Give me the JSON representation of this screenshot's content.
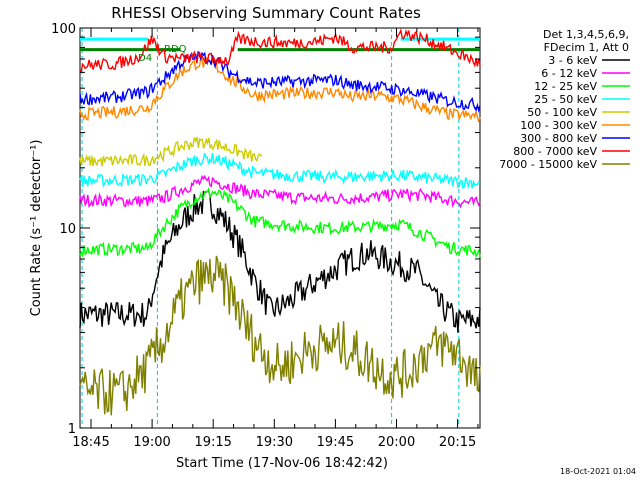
{
  "chart_data": {
    "type": "line",
    "title": "RHESSI Observing Summary Count Rates",
    "xlabel": "Start Time (17-Nov-06 18:42:42)",
    "ylabel": "Count Rate (s⁻¹ detector⁻¹)",
    "yscale": "log",
    "ylim": [
      1,
      100
    ],
    "xlim_minutes": [
      -2.7,
      95.5
    ],
    "x_tick_labels": [
      "18:45",
      "19:00",
      "19:15",
      "19:30",
      "19:45",
      "20:00",
      "20:15"
    ],
    "x_tick_minutes": [
      0,
      15,
      30,
      45,
      60,
      75,
      90
    ],
    "y_tick_labels": [
      "1",
      "10",
      "100"
    ],
    "y_tick_values": [
      1,
      10,
      100
    ],
    "legend_header": [
      "Det 1,3,4,5,6,9,",
      "FDecim 1, Att 0"
    ],
    "legend_placement": "right",
    "annotations": [
      {
        "label": "RDQ",
        "color": "#008000"
      },
      {
        "label": "D4",
        "color": "#008000"
      }
    ],
    "vertical_markers_minutes": [
      -2.2,
      16.3,
      73.8,
      90.3
    ],
    "flag_lines": [
      {
        "name": "cyan-flag",
        "color": "#00ffff",
        "level": 88,
        "segments": [
          [
            -2.7,
            14
          ],
          [
            76,
            95.5
          ]
        ]
      },
      {
        "name": "green-flag",
        "color": "#008000",
        "level": 78,
        "segments": [
          [
            -2.7,
            22
          ],
          [
            36,
            95.5
          ]
        ]
      }
    ],
    "series": [
      {
        "name": "3 - 6 keV",
        "color": "#000000",
        "x": [
          -2.7,
          14,
          18,
          22,
          26,
          29,
          32,
          36,
          40,
          44,
          48,
          52,
          56,
          60,
          64,
          68,
          72,
          76,
          80,
          85,
          90,
          95.5
        ],
        "y": [
          3.7,
          3.7,
          7.5,
          10.5,
          13,
          13.5,
          11.5,
          8.5,
          5.5,
          3.8,
          4.2,
          4.8,
          5.5,
          6.2,
          7.0,
          7.5,
          7.0,
          6.5,
          6.0,
          4.2,
          3.4,
          3.5
        ]
      },
      {
        "name": "6 - 12 keV",
        "color": "#ff00ff",
        "x": [
          -2.7,
          14,
          18,
          22,
          26,
          30,
          34,
          40,
          50,
          60,
          70,
          76,
          82,
          88,
          95.5
        ],
        "y": [
          13.8,
          13.6,
          14.2,
          15.5,
          16.8,
          17.2,
          16.2,
          14.8,
          14.2,
          14.0,
          14.3,
          14.8,
          14.5,
          13.8,
          13.2
        ]
      },
      {
        "name": "12 - 25 keV",
        "color": "#00ff00",
        "x": [
          -2.7,
          14,
          18,
          22,
          26,
          30,
          34,
          40,
          50,
          60,
          70,
          76,
          82,
          88,
          95.5
        ],
        "y": [
          7.8,
          7.9,
          10.2,
          12.5,
          14.3,
          15.1,
          13.8,
          10.8,
          10.2,
          10.0,
          10.2,
          10.5,
          9.2,
          8.0,
          7.6
        ]
      },
      {
        "name": "25 - 50 keV",
        "color": "#00ffff",
        "x": [
          -2.7,
          14,
          18,
          22,
          26,
          30,
          34,
          40,
          50,
          60,
          70,
          76,
          82,
          88,
          95.5
        ],
        "y": [
          17.2,
          17.5,
          18.5,
          20.5,
          22.0,
          22.3,
          21.0,
          18.8,
          18.2,
          18.0,
          18.2,
          18.3,
          17.8,
          17.2,
          16.8
        ]
      },
      {
        "name": "50 - 100 keV",
        "color": "#cccc00",
        "x": [
          -2.7,
          14,
          18,
          22,
          26,
          30,
          34,
          38,
          42
        ],
        "y": [
          21.5,
          21.8,
          23.5,
          25.5,
          27.0,
          26.5,
          25.0,
          23.2,
          21.8
        ]
      },
      {
        "name": "100 - 300 keV",
        "color": "#ff8800",
        "x": [
          -2.7,
          6,
          14,
          18,
          22,
          26,
          30,
          34,
          40,
          50,
          60,
          64,
          70,
          76,
          82,
          88,
          95.5
        ],
        "y": [
          37,
          38,
          40,
          49,
          60,
          67,
          66,
          56,
          46,
          47,
          48,
          45,
          46,
          44,
          40,
          37,
          36
        ]
      },
      {
        "name": "300 - 800 keV",
        "color": "#0000ff",
        "x": [
          -2.7,
          6,
          14,
          18,
          22,
          26,
          30,
          34,
          40,
          50,
          60,
          64,
          70,
          76,
          82,
          88,
          95.5
        ],
        "y": [
          44,
          45,
          48,
          56,
          67,
          72,
          70,
          60,
          53,
          54,
          55,
          52,
          51,
          49,
          46,
          43,
          41
        ]
      },
      {
        "name": "800 - 7000 keV",
        "color": "#ff0000",
        "x": [
          -2.7,
          6,
          12,
          15,
          18,
          22,
          26,
          30,
          34,
          36,
          42,
          50,
          56,
          60,
          64,
          70,
          74,
          76,
          82,
          88,
          95.5
        ],
        "y": [
          65,
          66,
          72,
          88,
          72,
          70,
          71,
          70,
          69,
          88,
          85,
          84,
          86,
          90,
          80,
          80,
          80,
          95,
          88,
          78,
          66
        ]
      },
      {
        "name": "7000 - 15000 keV",
        "color": "#808000",
        "x": [
          -2.7,
          8,
          14,
          18,
          22,
          26,
          30,
          34,
          38,
          42,
          46,
          50,
          54,
          58,
          62,
          66,
          70,
          74,
          78,
          82,
          86,
          90,
          95.5
        ],
        "y": [
          1.5,
          1.5,
          2.0,
          2.8,
          4.2,
          5.4,
          5.8,
          4.8,
          3.2,
          2.4,
          2.0,
          2.2,
          2.5,
          2.6,
          2.6,
          2.3,
          2.0,
          1.8,
          1.9,
          2.4,
          2.6,
          2.4,
          1.6
        ]
      }
    ]
  },
  "footer": {
    "timestamp": "18-Oct-2021 01:04"
  }
}
